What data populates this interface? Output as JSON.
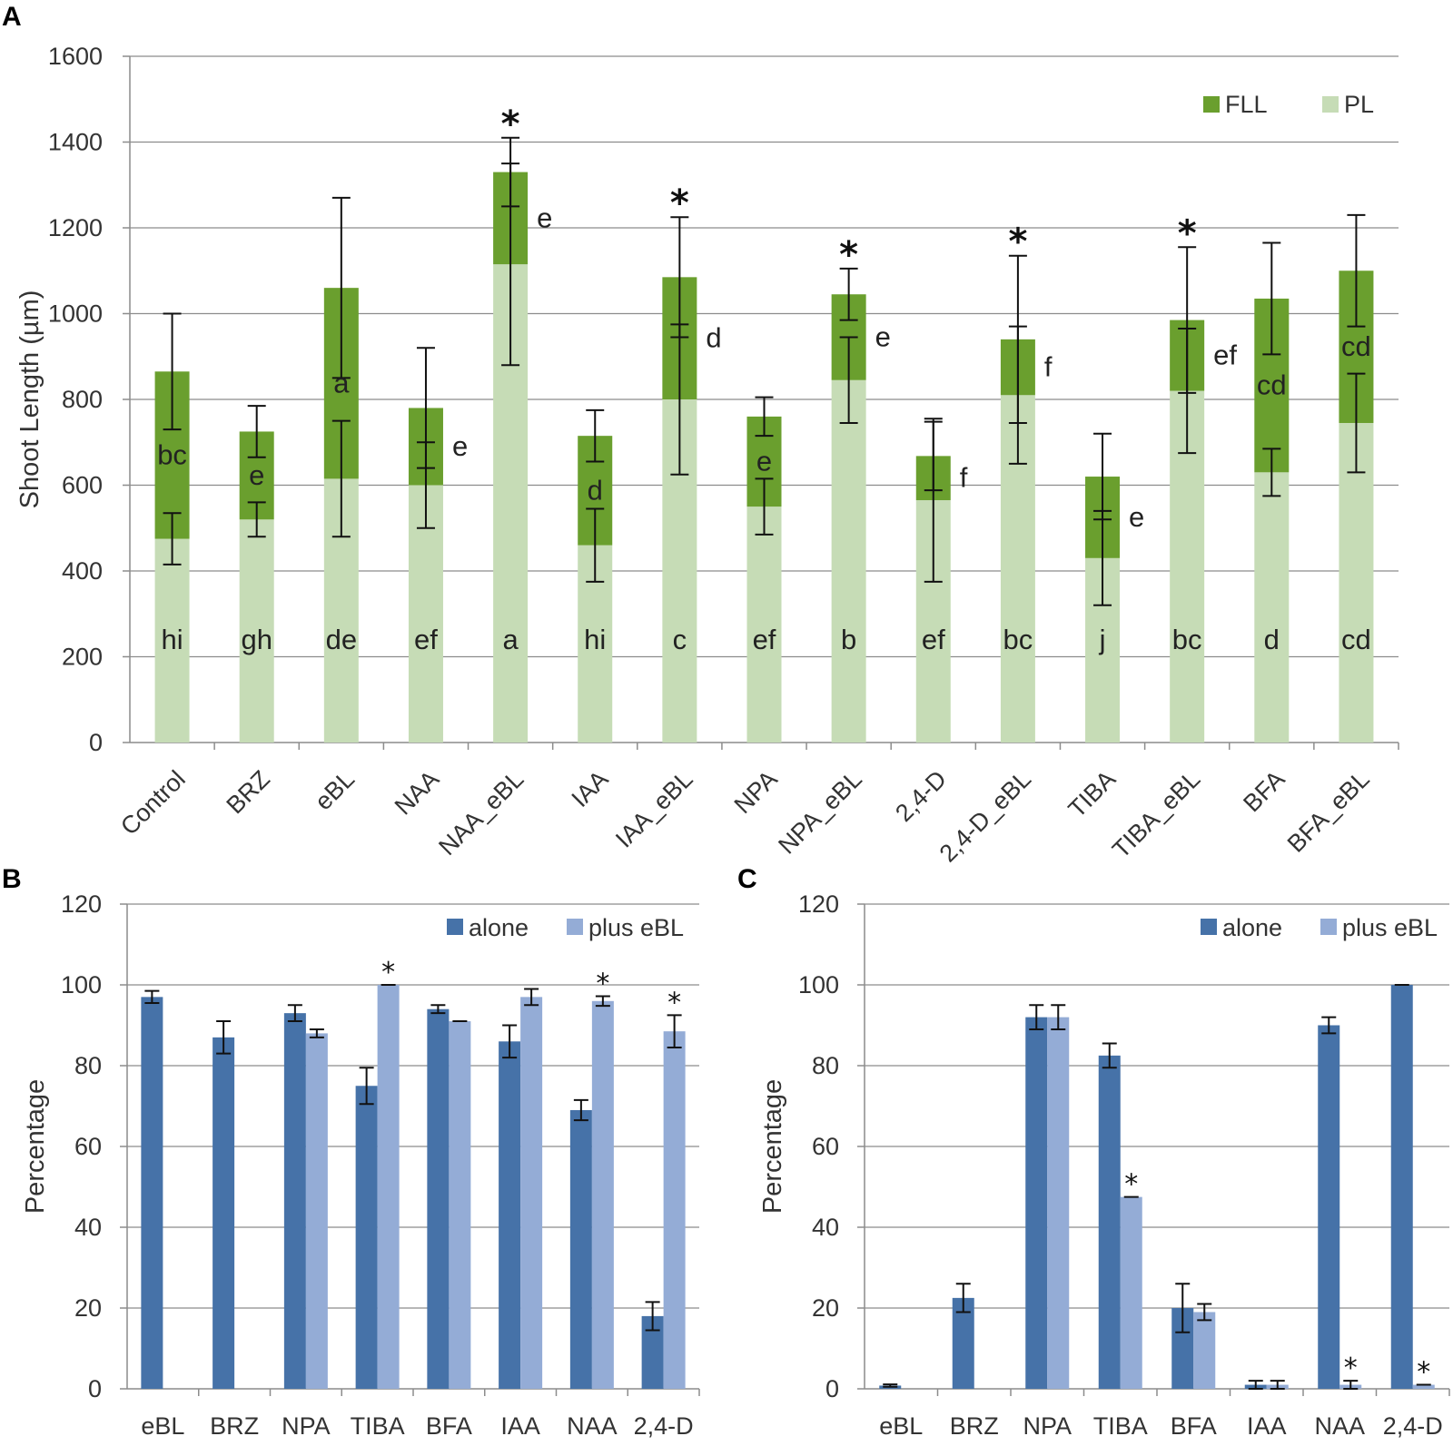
{
  "chart_data": [
    {
      "panel": "A",
      "type": "bar",
      "stacked": true,
      "ylabel": "Shoot Length (µm)",
      "ylim": [
        0,
        1600
      ],
      "yticks": [
        0,
        200,
        400,
        600,
        800,
        1000,
        1200,
        1400,
        1600
      ],
      "legend": [
        "FLL",
        "PL"
      ],
      "legend_position": "top-right",
      "colors": {
        "FLL": "#6a9f2e",
        "PL": "#c6dcb6"
      },
      "categories": [
        "Control",
        "BRZ",
        "eBL",
        "NAA",
        "NAA_eBL",
        "IAA",
        "IAA_eBL",
        "NPA",
        "NPA_eBL",
        "2,4-D",
        "2,4-D_eBL",
        "TIBA",
        "TIBA_eBL",
        "BFA",
        "BFA_eBL"
      ],
      "PL_values": [
        475,
        520,
        615,
        600,
        1115,
        460,
        800,
        550,
        845,
        565,
        810,
        430,
        820,
        630,
        745
      ],
      "total_values": [
        865,
        725,
        1060,
        780,
        1330,
        715,
        1085,
        760,
        1045,
        668,
        940,
        620,
        985,
        1035,
        1100
      ],
      "PL_error": [
        60,
        40,
        135,
        100,
        235,
        85,
        175,
        65,
        100,
        190,
        160,
        110,
        145,
        55,
        115
      ],
      "total_error": [
        135,
        60,
        210,
        140,
        80,
        60,
        140,
        45,
        60,
        80,
        195,
        100,
        170,
        130,
        130
      ],
      "PL_letters": [
        "hi",
        "gh",
        "de",
        "ef",
        "a",
        "hi",
        "c",
        "ef",
        "b",
        "ef",
        "bc",
        "j",
        "bc",
        "d",
        "cd"
      ],
      "FLL_letters": [
        "bc",
        "e",
        "a",
        "e",
        "e",
        "d",
        "d",
        "e",
        "e",
        "f",
        "f",
        "e",
        "ef",
        "cd",
        "cd"
      ],
      "significant": [
        false,
        false,
        false,
        false,
        true,
        false,
        true,
        false,
        true,
        false,
        true,
        false,
        true,
        false,
        false
      ],
      "star_symbol": "*"
    },
    {
      "panel": "B",
      "type": "bar",
      "ylabel": "Percentage",
      "ylim": [
        0,
        120
      ],
      "yticks": [
        0,
        20,
        40,
        60,
        80,
        100,
        120
      ],
      "legend": [
        "alone",
        "plus eBL"
      ],
      "legend_position": "top-right",
      "colors": {
        "alone": "#4672a8",
        "plus eBL": "#94acd6"
      },
      "categories": [
        "eBL",
        "BRZ",
        "NPA",
        "TIBA",
        "BFA",
        "IAA",
        "NAA",
        "2,4-D"
      ],
      "series": [
        {
          "name": "alone",
          "values": [
            97,
            87,
            93,
            75,
            94,
            86,
            69,
            18
          ],
          "errors": [
            1.5,
            4,
            2,
            4.5,
            1,
            4,
            2.5,
            3.5
          ]
        },
        {
          "name": "plus eBL",
          "values": [
            null,
            null,
            88,
            100,
            91,
            97,
            96,
            88.5
          ],
          "errors": [
            0,
            0,
            1,
            0,
            0,
            2,
            1.2,
            4
          ]
        }
      ],
      "significant": [
        false,
        false,
        false,
        true,
        false,
        false,
        true,
        true
      ],
      "star_symbol": "*"
    },
    {
      "panel": "C",
      "type": "bar",
      "ylabel": "Percentage",
      "ylim": [
        0,
        120
      ],
      "yticks": [
        0,
        20,
        40,
        60,
        80,
        100,
        120
      ],
      "legend": [
        "alone",
        "plus eBL"
      ],
      "legend_position": "top-right",
      "colors": {
        "alone": "#4672a8",
        "plus eBL": "#94acd6"
      },
      "categories": [
        "eBL",
        "BRZ",
        "NPA",
        "TIBA",
        "BFA",
        "IAA",
        "NAA",
        "2,4-D"
      ],
      "series": [
        {
          "name": "alone",
          "values": [
            0.8,
            22.5,
            92,
            82.5,
            20,
            1,
            90,
            100
          ],
          "errors": [
            0.3,
            3.5,
            3,
            3,
            6,
            1,
            2,
            0
          ]
        },
        {
          "name": "plus eBL",
          "values": [
            null,
            null,
            92,
            47.5,
            19,
            1,
            1,
            1
          ],
          "errors": [
            0,
            0,
            3,
            0,
            2,
            1,
            1,
            0
          ]
        }
      ],
      "significant": [
        false,
        false,
        false,
        true,
        false,
        false,
        true,
        true
      ],
      "star_symbol": "*"
    }
  ]
}
